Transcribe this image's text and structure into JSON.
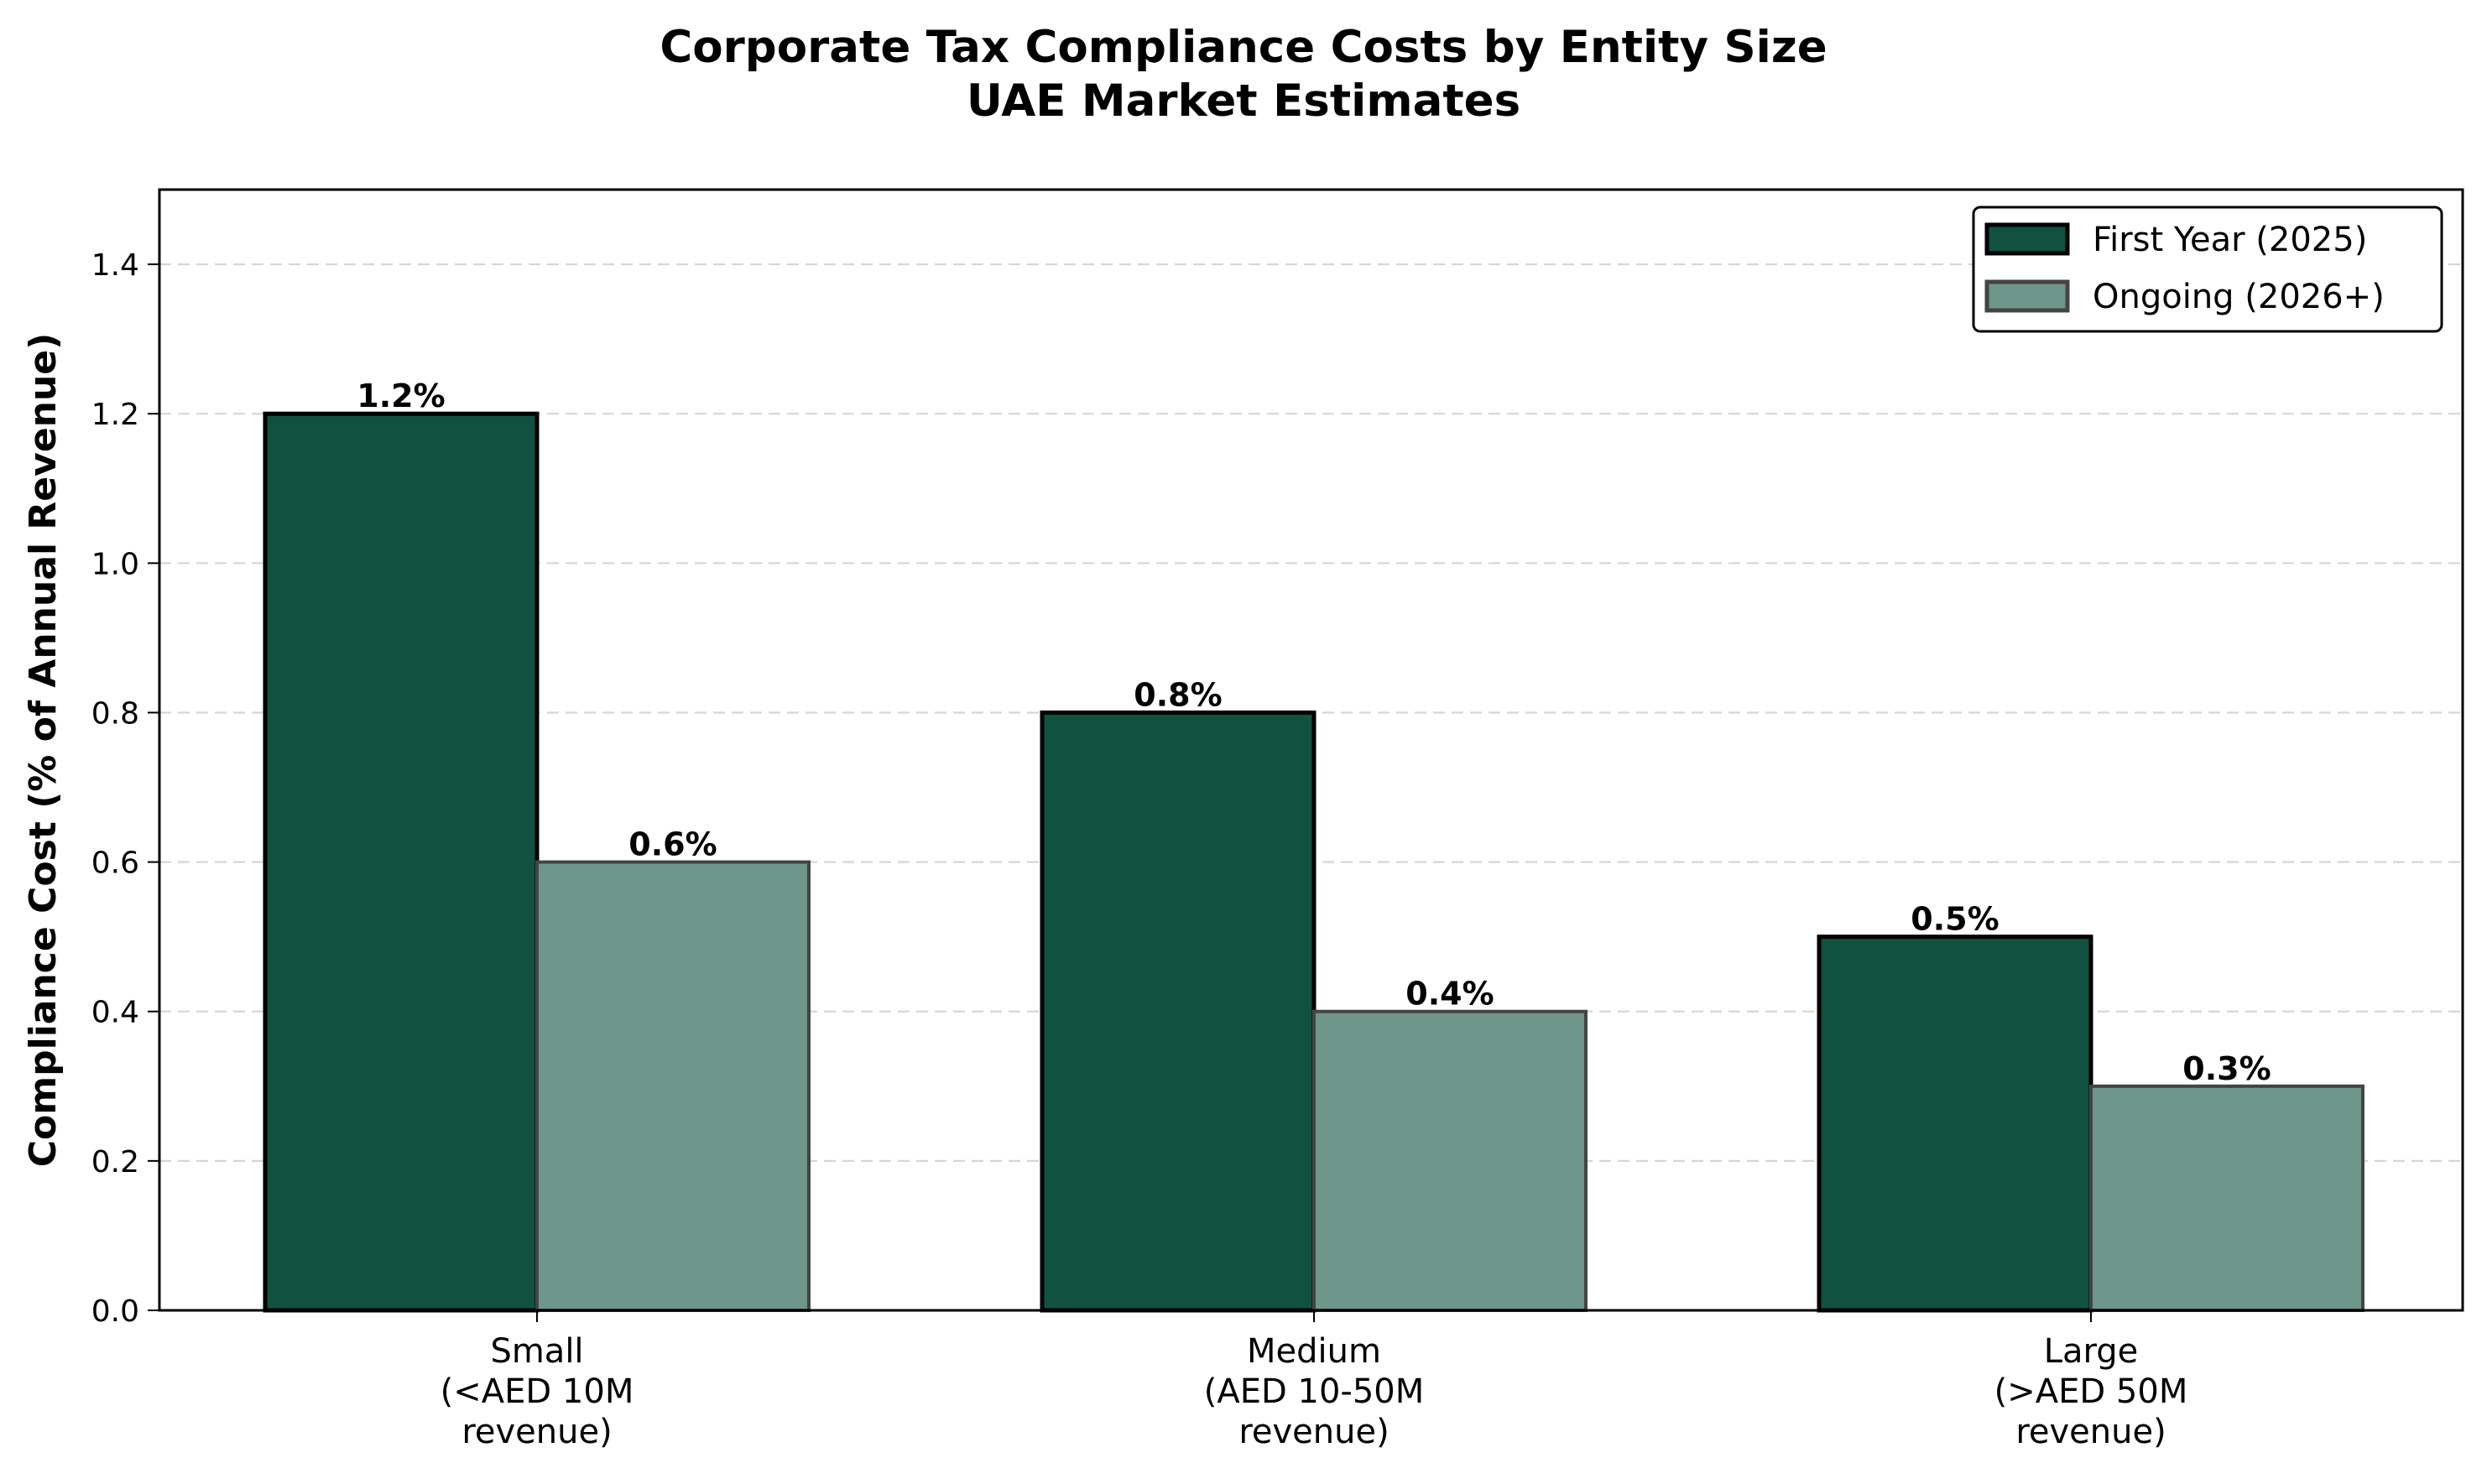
{
  "chart_data": {
    "type": "bar",
    "title": "Corporate Tax Compliance Costs by Entity Size",
    "subtitle": "UAE Market Estimates",
    "xlabel": "",
    "ylabel": "Compliance Cost (% of Annual Revenue)",
    "ylim": [
      0,
      1.5
    ],
    "yticks": [
      0.0,
      0.2,
      0.4,
      0.6,
      0.8,
      1.0,
      1.2,
      1.4
    ],
    "ytick_labels": [
      "0.0",
      "0.2",
      "0.4",
      "0.6",
      "0.8",
      "1.0",
      "1.2",
      "1.4"
    ],
    "grid": "y-dashed",
    "legend_position": "top-right",
    "categories": [
      [
        "Small",
        "(<AED 10M",
        "revenue)"
      ],
      [
        "Medium",
        "(AED 10-50M",
        "revenue)"
      ],
      [
        "Large",
        "(>AED 50M",
        "revenue)"
      ]
    ],
    "series": [
      {
        "name": "First Year (2025)",
        "values": [
          1.2,
          0.8,
          0.5
        ],
        "labels": [
          "1.2%",
          "0.8%",
          "0.5%"
        ],
        "color": "#11513f",
        "edge_color": "#000000"
      },
      {
        "name": "Ongoing (2026+)",
        "values": [
          0.6,
          0.4,
          0.3
        ],
        "labels": [
          "0.6%",
          "0.4%",
          "0.3%"
        ],
        "color": "#6e968b",
        "edge_color": "#444444"
      }
    ]
  }
}
